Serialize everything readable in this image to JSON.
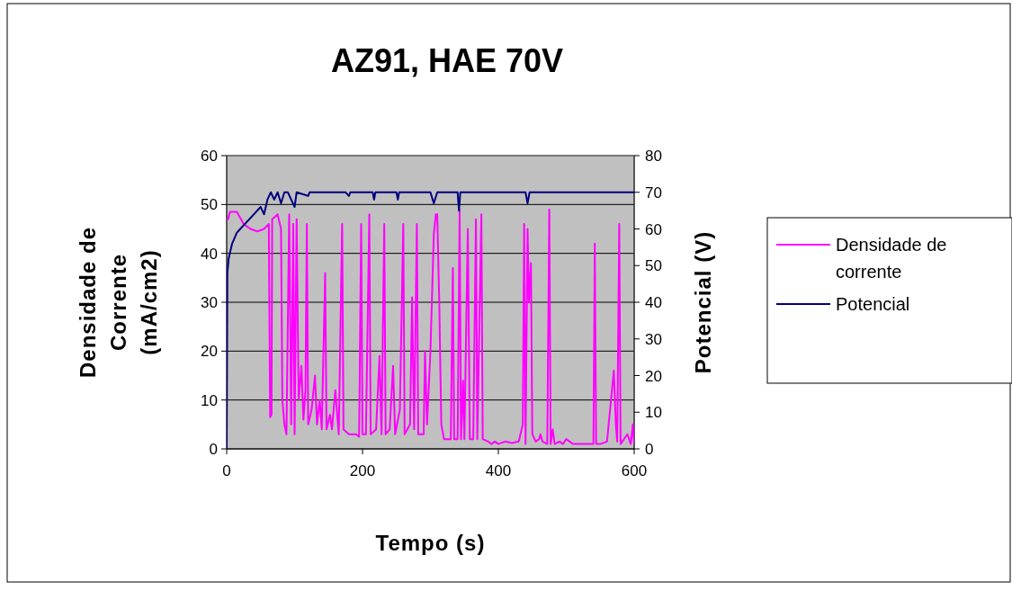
{
  "chart_data": {
    "type": "line",
    "title": "AZ91, HAE 70V",
    "xlabel": "Tempo (s)",
    "ylabel": "Densidade de Corrente (mA/cm2)",
    "y2label": "Potencial (V)",
    "xlim": [
      0,
      600
    ],
    "xticks": [
      0,
      200,
      400,
      600
    ],
    "ylim": [
      0,
      60
    ],
    "yticks": [
      0,
      10,
      20,
      30,
      40,
      50,
      60
    ],
    "y2lim": [
      0,
      80
    ],
    "y2ticks": [
      0,
      10,
      20,
      30,
      40,
      50,
      60,
      70,
      80
    ],
    "grid": "y",
    "legend": "right",
    "line_style": "solid",
    "marker": "none",
    "series": [
      {
        "name": "Densidade de corrente",
        "color": "#ff00ff",
        "x": [
          0,
          2,
          5,
          15,
          25,
          35,
          45,
          55,
          62,
          64,
          66,
          67,
          75,
          80,
          82,
          85,
          88,
          92,
          95,
          98,
          100,
          103,
          106,
          110,
          113,
          116,
          118,
          120,
          125,
          130,
          133,
          137,
          140,
          145,
          147,
          152,
          155,
          160,
          165,
          170,
          172,
          180,
          190,
          195,
          198,
          200,
          205,
          210,
          212,
          220,
          225,
          228,
          232,
          234,
          240,
          245,
          248,
          255,
          260,
          262,
          270,
          273,
          276,
          280,
          282,
          290,
          292,
          295,
          300,
          305,
          308,
          310,
          313,
          316,
          320,
          330,
          333,
          335,
          340,
          343,
          345,
          348,
          350,
          355,
          358,
          363,
          367,
          369,
          375,
          377,
          385,
          390,
          395,
          400,
          410,
          420,
          430,
          436,
          438,
          440,
          443,
          445,
          448,
          450,
          455,
          460,
          462,
          465,
          472,
          475,
          477,
          480,
          483,
          490,
          495,
          500,
          505,
          510,
          540,
          542,
          544,
          550,
          560,
          570,
          573,
          575,
          578,
          580,
          590,
          595,
          598,
          600
        ],
        "values": [
          47,
          47,
          48.5,
          48.5,
          46,
          45,
          44.5,
          45,
          46,
          6.5,
          7,
          47,
          48,
          45,
          10,
          5,
          3,
          48,
          5,
          46,
          3,
          47,
          10,
          17,
          6,
          12,
          46,
          5,
          8,
          15,
          5,
          10,
          4,
          36,
          4,
          7,
          4,
          12,
          3,
          46,
          4,
          3,
          3,
          2.5,
          46,
          3,
          3,
          48,
          3,
          4,
          19,
          3,
          46,
          3,
          4,
          17,
          3,
          8,
          46,
          3,
          5,
          31,
          4,
          46,
          3,
          3,
          20,
          5,
          20,
          44,
          48,
          48,
          30,
          5,
          2,
          2,
          37,
          2,
          2,
          49,
          2,
          14,
          2,
          45,
          2,
          2,
          47,
          2,
          48,
          2,
          1.5,
          1,
          1.5,
          1,
          1.5,
          1.2,
          1.5,
          5,
          46,
          1,
          45,
          30,
          38,
          3,
          1.5,
          2,
          3,
          1.5,
          1,
          49,
          1,
          4,
          1,
          1.5,
          1,
          2,
          1.5,
          1,
          1,
          42,
          1,
          1,
          1.5,
          16,
          5,
          1.5,
          46,
          1,
          3,
          1,
          5,
          1
        ]
      },
      {
        "name": "Potencial",
        "color": "#000080",
        "axis": "y2",
        "x": [
          0,
          1,
          3,
          8,
          15,
          20,
          30,
          40,
          50,
          55,
          60,
          65,
          70,
          75,
          80,
          85,
          90,
          100,
          103,
          120,
          122,
          150,
          175,
          180,
          182,
          215,
          217,
          219,
          250,
          252,
          254,
          300,
          305,
          310,
          340,
          342,
          344,
          380,
          400,
          440,
          443,
          446,
          600
        ],
        "values": [
          0,
          48,
          52,
          56,
          59,
          60,
          62,
          64,
          66,
          64,
          68,
          70,
          68,
          70,
          67,
          70,
          70,
          66,
          70,
          69,
          70,
          70,
          70,
          69,
          70,
          70,
          68,
          70,
          70,
          68,
          70,
          70,
          67,
          70,
          70,
          65,
          70,
          70,
          70,
          70,
          67,
          70,
          70
        ]
      }
    ]
  }
}
